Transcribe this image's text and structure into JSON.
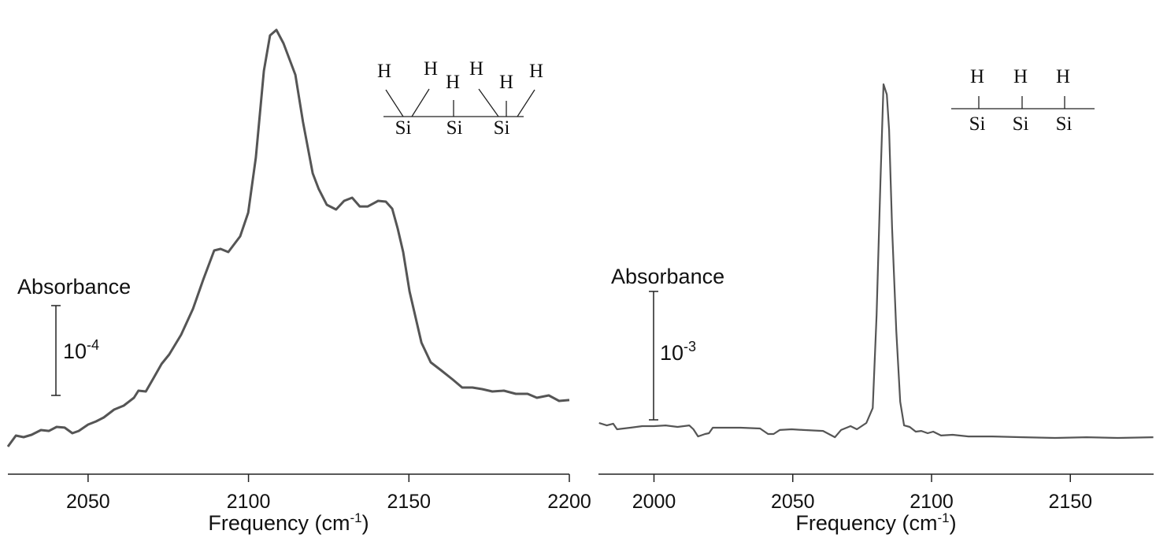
{
  "chart_data": [
    {
      "type": "line",
      "xlabel": [
        "Frequency (cm",
        "-1",
        ")"
      ],
      "xlim": [
        2025,
        2200
      ],
      "xticks": [
        2050,
        2100,
        2150,
        2200
      ],
      "ylim": [
        0,
        0.0005
      ],
      "scale_bar": {
        "label": "Absorbance",
        "base": "10",
        "exponent": "-4",
        "value": 0.0001
      },
      "structure": {
        "top": [
          "H",
          "H",
          "H",
          "H",
          "H",
          "H"
        ],
        "bottom": [
          "Si",
          "Si",
          "Si"
        ]
      },
      "series": [
        {
          "color": "#555555",
          "x": [
            2025.0,
            2027.5,
            2029.9,
            2032.4,
            2035.3,
            2037.8,
            2040.2,
            2042.7,
            2045.1,
            2047.1,
            2050.0,
            2052.5,
            2054.9,
            2058.1,
            2061.1,
            2064.3,
            2065.7,
            2068.0,
            2070.4,
            2072.9,
            2075.3,
            2079.0,
            2082.7,
            2085.9,
            2089.3,
            2091.3,
            2093.7,
            2097.4,
            2099.9,
            2102.3,
            2104.8,
            2106.7,
            2108.7,
            2110.9,
            2114.6,
            2117.0,
            2120.0,
            2121.9,
            2124.4,
            2127.3,
            2129.8,
            2132.3,
            2134.7,
            2137.2,
            2140.4,
            2142.8,
            2144.8,
            2146.5,
            2148.2,
            2150.2,
            2153.9,
            2156.8,
            2160.0,
            2163.7,
            2166.6,
            2169.8,
            2172.8,
            2176.0,
            2179.6,
            2183.3,
            2187.0,
            2189.9,
            2193.6,
            2196.8,
            2200.0
          ],
          "values": [
            3.07e-05,
            4.3e-05,
            4.12e-05,
            4.39e-05,
            4.91e-05,
            4.82e-05,
            5.26e-05,
            5.18e-05,
            4.56e-05,
            4.82e-05,
            5.53e-05,
            5.88e-05,
            6.32e-05,
            7.19e-05,
            7.63e-05,
            8.51e-05,
            9.3e-05,
            9.21e-05,
            0.000107,
            0.0001228,
            0.0001333,
            0.0001553,
            0.0001842,
            0.0002167,
            0.0002491,
            0.0002509,
            0.0002474,
            0.0002649,
            0.0002912,
            0.0003526,
            0.0004491,
            0.0004886,
            0.0004947,
            0.0004798,
            0.0004447,
            0.0003921,
            0.0003351,
            0.0003175,
            0.0003,
            0.0002947,
            0.0003044,
            0.0003079,
            0.0002982,
            0.0002982,
            0.0003044,
            0.0003035,
            0.0002956,
            0.0002737,
            0.0002474,
            0.0002035,
            0.0001465,
            0.0001246,
            0.0001158,
            0.0001053,
            9.65e-05,
            9.65e-05,
            9.47e-05,
            9.21e-05,
            9.3e-05,
            8.95e-05,
            8.95e-05,
            8.51e-05,
            8.77e-05,
            8.16e-05,
            8.25e-05
          ]
        }
      ]
    },
    {
      "type": "line",
      "xlabel": [
        "Frequency (cm",
        "-1",
        ")"
      ],
      "xlim": [
        1980,
        2180
      ],
      "xticks": [
        2000,
        2050,
        2100,
        2150
      ],
      "ylim": [
        0,
        0.0035
      ],
      "scale_bar": {
        "label": "Absorbance",
        "base": "10",
        "exponent": "-3",
        "value": 0.001
      },
      "structure": {
        "top": [
          "H",
          "H",
          "H"
        ],
        "bottom": [
          "Si",
          "Si",
          "Si"
        ]
      },
      "series": [
        {
          "color": "#555555",
          "x": [
            1980.2,
            1983.0,
            1985.3,
            1986.7,
            1991.5,
            1995.8,
            2000.0,
            2004.2,
            2008.5,
            2012.7,
            2014.2,
            2015.9,
            2018.4,
            2019.8,
            2021.2,
            2025.5,
            2031.2,
            2038.2,
            2041.1,
            2043.1,
            2045.3,
            2049.6,
            2053.8,
            2060.9,
            2065.2,
            2067.4,
            2070.8,
            2073.1,
            2076.5,
            2078.8,
            2080.2,
            2081.6,
            2082.7,
            2083.9,
            2084.7,
            2085.8,
            2087.3,
            2088.7,
            2090.1,
            2092.1,
            2094.3,
            2096.3,
            2098.6,
            2100.6,
            2103.4,
            2107.6,
            2113.3,
            2121.8,
            2133.1,
            2144.5,
            2155.8,
            2167.1,
            2179.9
          ],
          "values": [
            0.000399,
            0.00038,
            0.000393,
            0.00035,
            0.000362,
            0.000374,
            0.000374,
            0.00038,
            0.000368,
            0.00038,
            0.00035,
            0.000294,
            0.000313,
            0.000319,
            0.000362,
            0.000362,
            0.000362,
            0.000356,
            0.000313,
            0.000313,
            0.000344,
            0.00035,
            0.000344,
            0.000337,
            0.000288,
            0.000344,
            0.000374,
            0.00035,
            0.000399,
            0.000515,
            0.001239,
            0.002282,
            0.003037,
            0.002957,
            0.002681,
            0.001914,
            0.001117,
            0.000564,
            0.00038,
            0.000368,
            0.000331,
            0.000337,
            0.000319,
            0.000331,
            0.000301,
            0.000307,
            0.000294,
            0.000294,
            0.000288,
            0.000282,
            0.000288,
            0.000282,
            0.000288
          ]
        }
      ]
    }
  ]
}
